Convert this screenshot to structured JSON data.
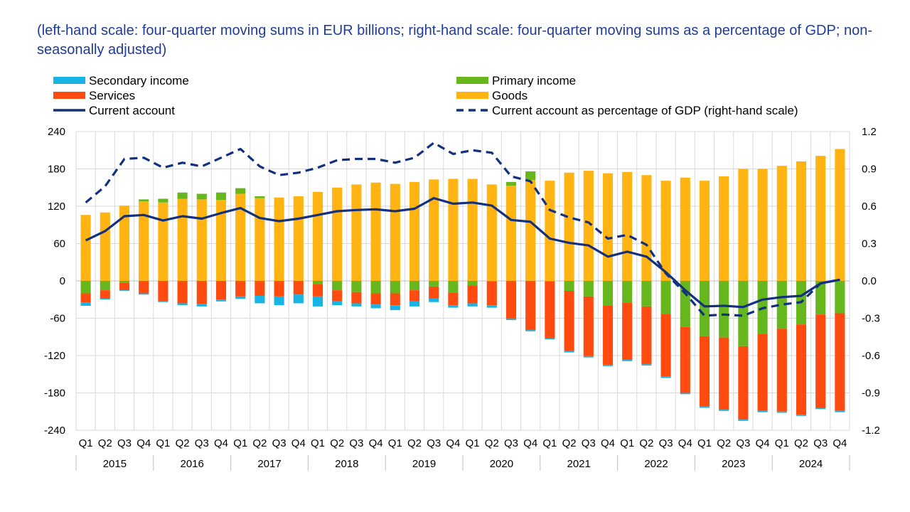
{
  "subtitle": "(left-hand scale: four-quarter moving sums in EUR billions; right-hand scale: four-quarter moving sums as a percentage of GDP; non-seasonally adjusted)",
  "colors": {
    "secondary_income": "#19b4e6",
    "primary_income": "#66b71d",
    "services": "#ff4b0f",
    "goods": "#ffb414",
    "current_account": "#12307e",
    "grid": "#d9d9d9"
  },
  "chart_data": {
    "type": "bar",
    "stacked": true,
    "legend": [
      {
        "key": "secondary_income",
        "label": "Secondary income",
        "kind": "bar"
      },
      {
        "key": "primary_income",
        "label": "Primary income",
        "kind": "bar"
      },
      {
        "key": "services",
        "label": "Services",
        "kind": "bar"
      },
      {
        "key": "goods",
        "label": "Goods",
        "kind": "bar"
      },
      {
        "key": "current_account",
        "label": "Current account",
        "kind": "line"
      },
      {
        "key": "ca_gdp",
        "label": "Current account as percentage of GDP (right-hand scale)",
        "kind": "dashed"
      }
    ],
    "categories": [
      "Q1",
      "Q2",
      "Q3",
      "Q4",
      "Q1",
      "Q2",
      "Q3",
      "Q4",
      "Q1",
      "Q2",
      "Q3",
      "Q4",
      "Q1",
      "Q2",
      "Q3",
      "Q4",
      "Q1",
      "Q2",
      "Q3",
      "Q4",
      "Q1",
      "Q2",
      "Q3",
      "Q4",
      "Q1",
      "Q2",
      "Q3",
      "Q4",
      "Q1",
      "Q2",
      "Q3",
      "Q4",
      "Q1",
      "Q2",
      "Q3",
      "Q4",
      "Q1",
      "Q2",
      "Q3",
      "Q4"
    ],
    "years": [
      "2015",
      "2016",
      "2017",
      "2018",
      "2019",
      "2020",
      "2021",
      "2022",
      "2023",
      "2024"
    ],
    "ylim": [
      -240,
      240
    ],
    "y_ticks": [
      "240",
      "180",
      "120",
      "60",
      "0",
      "-60",
      "-120",
      "-180",
      "-240"
    ],
    "y2lim": [
      -1.2,
      1.2
    ],
    "y2_ticks": [
      "1.2",
      "0.9",
      "0.6",
      "0.3",
      "0.0",
      "-0.3",
      "-0.6",
      "-0.9",
      "-1.2"
    ],
    "grid": true,
    "series": [
      {
        "key": "goods",
        "name": "Goods",
        "values": [
          106,
          110,
          121,
          128,
          126,
          132,
          131,
          130,
          140,
          133,
          134,
          136,
          143,
          150,
          155,
          158,
          156,
          159,
          163,
          164,
          164,
          155,
          153,
          162,
          161,
          174,
          177,
          173,
          175,
          170,
          161,
          166,
          161,
          168,
          180,
          180,
          185,
          192,
          201,
          212
        ]
      },
      {
        "key": "primary_income",
        "name": "Primary income",
        "values": [
          -20,
          -15,
          -3,
          3,
          6,
          10,
          9,
          12,
          9,
          3,
          0,
          0,
          -5,
          -15,
          -18,
          -20,
          -20,
          -15,
          -9,
          -19,
          -7,
          -1,
          6,
          14,
          -1,
          -16,
          -25,
          -40,
          -35,
          -41,
          -53,
          -74,
          -89,
          -91,
          -105,
          -85,
          -77,
          -70,
          -54,
          -52
        ]
      },
      {
        "key": "services",
        "name": "Services",
        "values": [
          -15,
          -13,
          -12,
          -20,
          -32,
          -36,
          -37,
          -30,
          -25,
          -24,
          -25,
          -22,
          -20,
          -17,
          -18,
          -18,
          -19,
          -18,
          -19,
          -20,
          -29,
          -38,
          -61,
          -79,
          -91,
          -97,
          -96,
          -95,
          -92,
          -93,
          -101,
          -106,
          -113,
          -116,
          -118,
          -124,
          -133,
          -145,
          -150,
          -157
        ]
      },
      {
        "key": "secondary_income",
        "name": "Secondary income",
        "values": [
          -5,
          -2,
          -1,
          -2,
          -2,
          -3,
          -4,
          -3,
          -4,
          -12,
          -14,
          -14,
          -16,
          -7,
          -5,
          -6,
          -8,
          -8,
          -6,
          -4,
          -5,
          -4,
          -2,
          -2,
          -2,
          -2,
          -2,
          -2,
          -2,
          -2,
          -2,
          -2,
          -2,
          -2,
          -2,
          -2,
          -2,
          -2,
          -2,
          -2
        ]
      },
      {
        "key": "current_account",
        "name": "Current account",
        "values": [
          65,
          80,
          104,
          106,
          97,
          104,
          100,
          109,
          117,
          101,
          96,
          100,
          106,
          112,
          114,
          115,
          112,
          116,
          133,
          124,
          126,
          121,
          98,
          95,
          68,
          61,
          57,
          39,
          47,
          39,
          14,
          -15,
          -41,
          -40,
          -42,
          -30,
          -26,
          -24,
          -4,
          2
        ]
      },
      {
        "key": "ca_gdp",
        "name": "Current account as percentage of GDP (right-hand scale)",
        "axis": "right",
        "values": [
          0.63,
          0.76,
          0.98,
          0.99,
          0.91,
          0.95,
          0.92,
          0.99,
          1.06,
          0.92,
          0.85,
          0.87,
          0.91,
          0.97,
          0.98,
          0.98,
          0.95,
          0.99,
          1.11,
          1.02,
          1.05,
          1.03,
          0.84,
          0.8,
          0.57,
          0.51,
          0.47,
          0.34,
          0.37,
          0.29,
          0.06,
          -0.1,
          -0.28,
          -0.27,
          -0.28,
          -0.22,
          -0.19,
          -0.17,
          -0.02,
          0.01
        ]
      }
    ]
  }
}
